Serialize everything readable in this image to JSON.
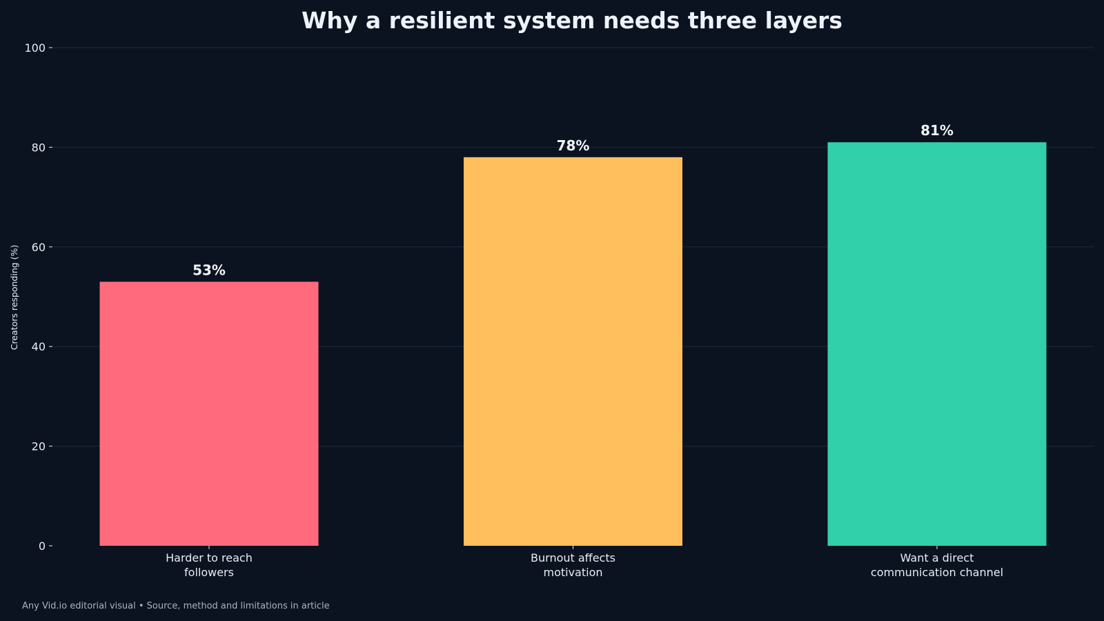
{
  "chart_data": {
    "type": "bar",
    "title": "Why a resilient system needs three layers",
    "ylabel": "Creators responding (%)",
    "xlabel": "",
    "ylim": [
      0,
      100
    ],
    "yticks": [
      0,
      20,
      40,
      60,
      80,
      100
    ],
    "grid": true,
    "categories": [
      [
        "Harder to reach",
        "followers"
      ],
      [
        "Burnout affects",
        "motivation"
      ],
      [
        "Want a direct",
        "communication channel"
      ]
    ],
    "values": [
      53,
      78,
      81
    ],
    "data_labels": [
      "53%",
      "78%",
      "81%"
    ],
    "colors": [
      "#ff6b7d",
      "#ffbf5c",
      "#31d0aa"
    ]
  },
  "footer": {
    "note": "Any Vid.io editorial visual • Source, method and limitations in article"
  },
  "theme": {
    "background": "#0b1320",
    "grid_color": "#1d2a3a",
    "text_color": "#e8edf5"
  }
}
